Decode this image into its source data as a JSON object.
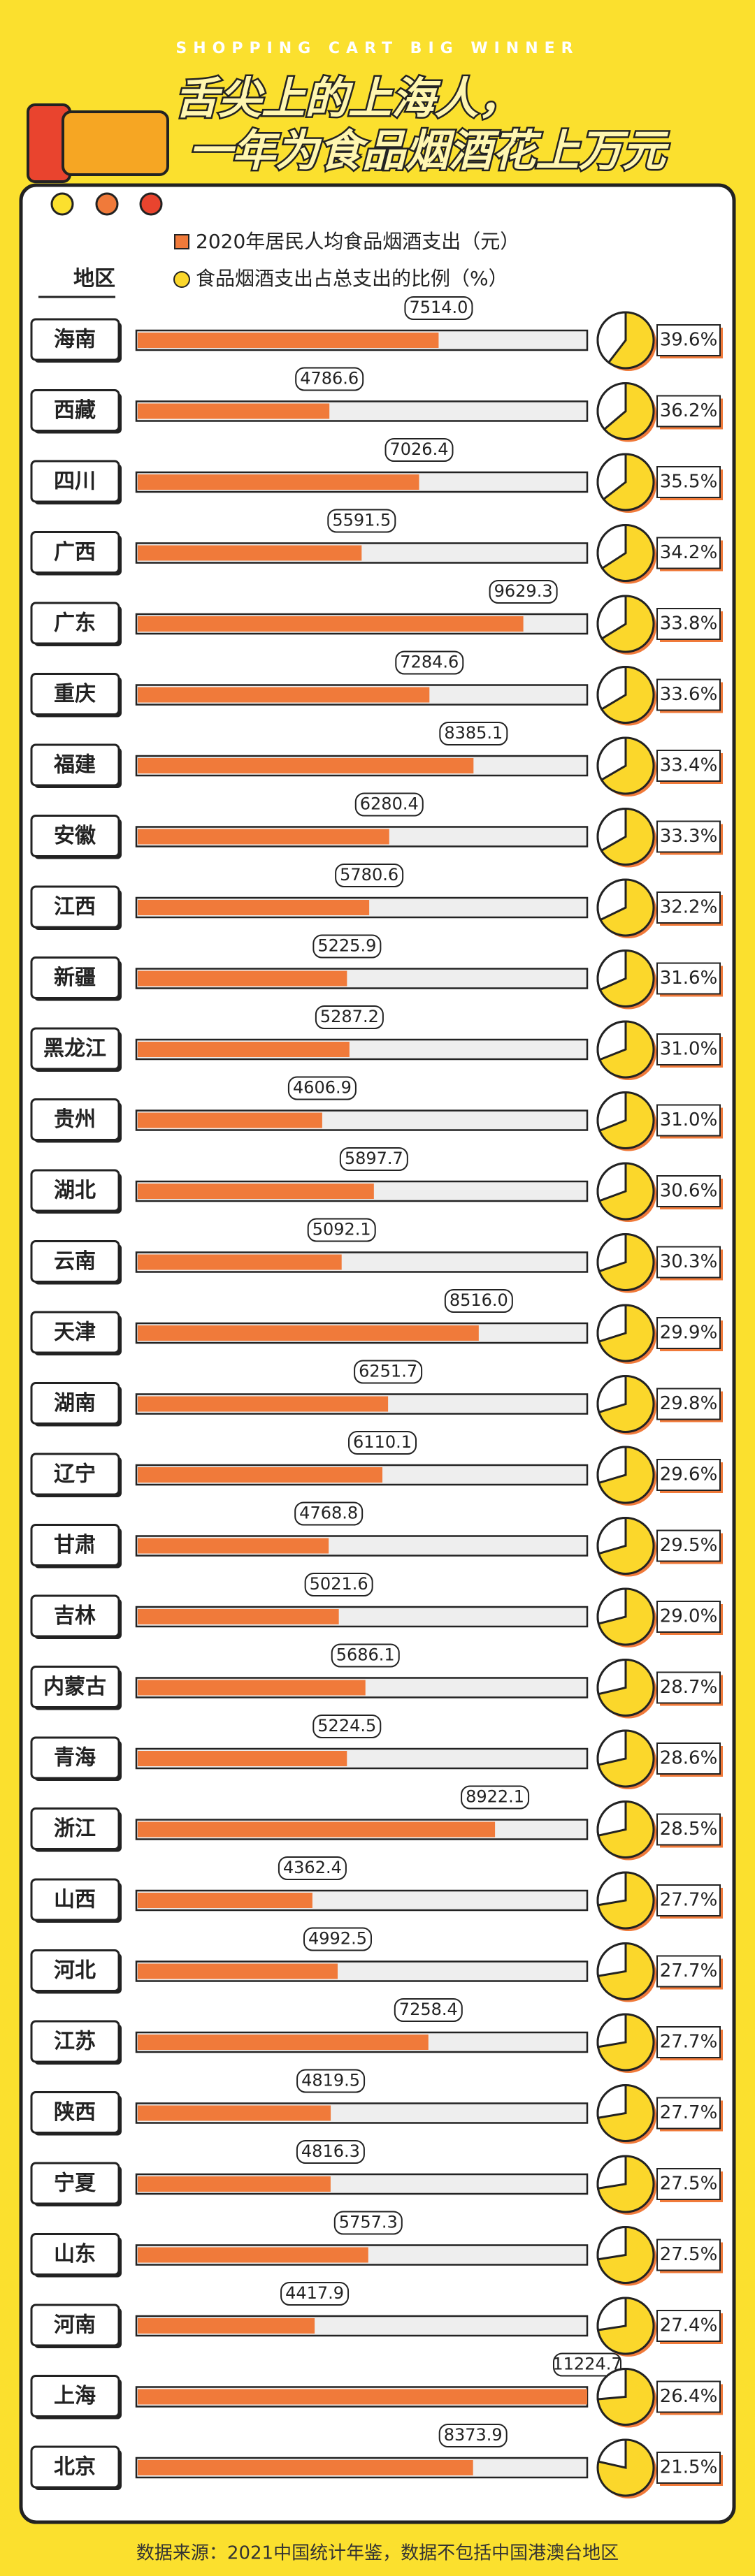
{
  "chart_data": {
    "type": "bar",
    "tagline": "SHOPPING CART BIG WINNER",
    "title_lines": [
      "舌尖上的上海人，",
      "一年为食品烟酒花上万元"
    ],
    "category_header": "地区",
    "source": "数据来源：2021中国统计年鉴，数据不包括中国港澳台地区",
    "categories": [
      "海南",
      "西藏",
      "四川",
      "广西",
      "广东",
      "重庆",
      "福建",
      "安徽",
      "江西",
      "新疆",
      "黑龙江",
      "贵州",
      "湖北",
      "云南",
      "天津",
      "湖南",
      "辽宁",
      "甘肃",
      "吉林",
      "内蒙古",
      "青海",
      "浙江",
      "山西",
      "河北",
      "江苏",
      "陕西",
      "宁夏",
      "山东",
      "河南",
      "上海",
      "北京"
    ],
    "xlim": [
      0,
      11224.7
    ],
    "series": [
      {
        "name": "2020年居民人均食品烟酒支出（元）",
        "color": "#f07a3a",
        "values": [
          7514.0,
          4786.6,
          7026.4,
          5591.5,
          9629.3,
          7284.6,
          8385.1,
          6280.4,
          5780.6,
          5225.9,
          5287.2,
          4606.9,
          5897.7,
          5092.1,
          8516.0,
          6251.7,
          6110.1,
          4768.8,
          5021.6,
          5686.1,
          5224.5,
          8922.1,
          4362.4,
          4992.5,
          7258.4,
          4819.5,
          4816.3,
          5757.3,
          4417.9,
          11224.7,
          8373.9
        ],
        "value_labels": [
          "7514.0",
          "4786.6",
          "7026.4",
          "5591.5",
          "9629.3",
          "7284.6",
          "8385.1",
          "6280.4",
          "5780.6",
          "5225.9",
          "5287.2",
          "4606.9",
          "5897.7",
          "5092.1",
          "8516.0",
          "6251.7",
          "6110.1",
          "4768.8",
          "5021.6",
          "5686.1",
          "5224.5",
          "8922.1",
          "4362.4",
          "4992.5",
          "7258.4",
          "4819.5",
          "4816.3",
          "5757.3",
          "4417.9",
          "11224.7",
          "8373.9"
        ]
      },
      {
        "name": "食品烟酒支出占总支出的比例（%）",
        "type": "pie",
        "color": "#ffffff",
        "base_color": "#fbd72b",
        "values": [
          39.6,
          36.2,
          35.5,
          34.2,
          33.8,
          33.6,
          33.4,
          33.3,
          32.2,
          31.6,
          31.0,
          31.0,
          30.6,
          30.3,
          29.9,
          29.8,
          29.6,
          29.5,
          29.0,
          28.7,
          28.6,
          28.5,
          27.7,
          27.7,
          27.7,
          27.7,
          27.5,
          27.5,
          27.4,
          26.4,
          21.5
        ],
        "value_labels": [
          "39.6%",
          "36.2%",
          "35.5%",
          "34.2%",
          "33.8%",
          "33.6%",
          "33.4%",
          "33.3%",
          "32.2%",
          "31.6%",
          "31.0%",
          "31.0%",
          "30.6%",
          "30.3%",
          "29.9%",
          "29.8%",
          "29.6%",
          "29.5%",
          "29.0%",
          "28.7%",
          "28.6%",
          "28.5%",
          "27.7%",
          "27.7%",
          "27.7%",
          "27.7%",
          "27.5%",
          "27.5%",
          "27.4%",
          "26.4%",
          "21.5%"
        ]
      }
    ]
  }
}
